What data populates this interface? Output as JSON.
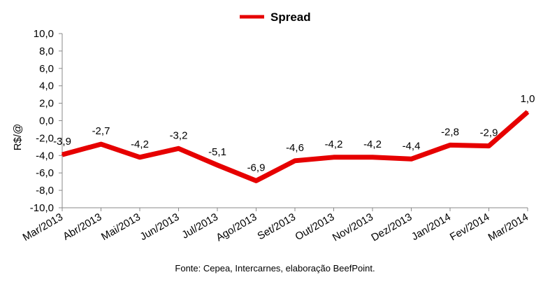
{
  "chart_data": {
    "type": "line",
    "categories": [
      "Mar/2013",
      "Abr/2013",
      "Mai/2013",
      "Jun/2013",
      "Jul/2013",
      "Ago/2013",
      "Set/2013",
      "Out/2013",
      "Nov/2013",
      "Dez/2013",
      "Jan/2014",
      "Fev/2014",
      "Mar/2014"
    ],
    "series": [
      {
        "name": "Spread",
        "color": "#e60000",
        "values": [
          -3.9,
          -2.7,
          -4.2,
          -3.2,
          -5.1,
          -6.9,
          -4.6,
          -4.2,
          -4.2,
          -4.4,
          -2.8,
          -2.9,
          1.0
        ],
        "labels": [
          "-3,9",
          "-2,7",
          "-4,2",
          "-3,2",
          "-5,1",
          "-6,9",
          "-4,6",
          "-4,2",
          "-4,2",
          "-4,4",
          "-2,8",
          "-2,9",
          "1,0"
        ]
      }
    ],
    "ylabel": "R$/@",
    "xlabel": "",
    "ylim": [
      -10,
      10
    ],
    "yticks": [
      10,
      8,
      6,
      4,
      2,
      0,
      -2,
      -4,
      -6,
      -8,
      -10
    ],
    "ytick_labels": [
      "10,0",
      "8,0",
      "6,0",
      "4,0",
      "2,0",
      "0,0",
      "-2,0",
      "-4,0",
      "-6,0",
      "-8,0",
      "-10,0"
    ],
    "grid": false,
    "legend": "top-center"
  },
  "source_note": "Fonte: Cepea, Intercarnes, elaboração BeefPoint."
}
